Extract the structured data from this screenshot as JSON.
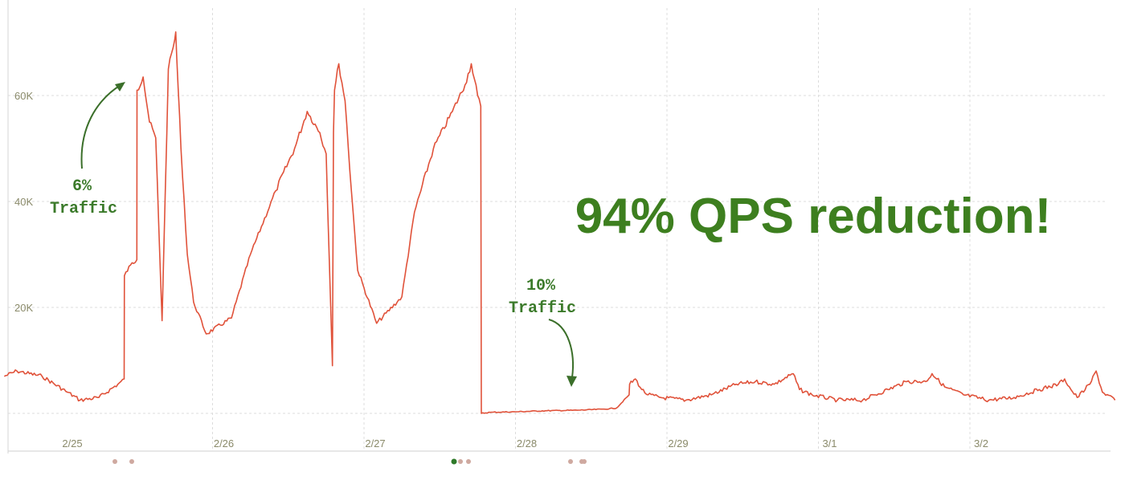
{
  "headline": "94% QPS reduction!",
  "annotations": [
    {
      "line1": "6%",
      "line2": "Traffic"
    },
    {
      "line1": "10%",
      "line2": "Traffic"
    }
  ],
  "chart_data": {
    "type": "line",
    "title": "",
    "xlabel": "",
    "ylabel": "",
    "x_ticks": [
      "2/25",
      "2/26",
      "2/27",
      "2/28",
      "2/29",
      "3/1",
      "3/2"
    ],
    "y_ticks": [
      20000,
      40000,
      60000
    ],
    "y_tick_labels": [
      "20K",
      "40K",
      "60K"
    ],
    "xlim": [
      "2/24 15:00",
      "3/2 23:00"
    ],
    "ylim": [
      0,
      73000
    ],
    "grid": true,
    "legend": "none",
    "series": [
      {
        "color": "#e0523a",
        "x": [
          "2/24 15:00",
          "2/24 17:00",
          "2/24 21:00",
          "2/25 01:00",
          "2/25 03:00",
          "2/25 06:00",
          "2/25 09:00",
          "2/25 10:00",
          "2/25 10:02",
          "2/25 11:00",
          "2/25 12:00",
          "2/25 12:02",
          "2/25 13:00",
          "2/25 14:00",
          "2/25 15:00",
          "2/25 16:00",
          "2/25 17:00",
          "2/25 18:00",
          "2/25 18:10",
          "2/25 18:20",
          "2/25 19:00",
          "2/25 20:00",
          "2/25 21:00",
          "2/25 23:00",
          "2/26 03:00",
          "2/26 06:00",
          "2/26 10:00",
          "2/26 13:00",
          "2/26 15:00",
          "2/26 17:00",
          "2/26 18:00",
          "2/26 19:00",
          "2/26 19:10",
          "2/26 19:20",
          "2/26 20:00",
          "2/26 21:00",
          "2/26 22:00",
          "2/26 23:00",
          "2/27 02:00",
          "2/27 06:00",
          "2/27 08:00",
          "2/27 11:00",
          "2/27 14:00",
          "2/27 16:00",
          "2/27 17:00",
          "2/27 18:00",
          "2/27 18:30",
          "2/27 18:35",
          "2/27 20:00",
          "2/28 00:00",
          "2/28 05:00",
          "2/28 10:00",
          "2/28 14:00",
          "2/28 16:00",
          "2/28 18:00",
          "2/28 18:05",
          "2/28 19:00",
          "2/28 20:00",
          "2/28 21:00",
          "2/28 23:00",
          "2/29 03:00",
          "2/29 07:00",
          "2/29 11:00",
          "2/29 14:00",
          "2/29 17:00",
          "2/29 20:00",
          "2/29 21:00",
          "2/29 23:00",
          "3/1 03:00",
          "3/1 07:00",
          "3/1 11:00",
          "3/1 14:00",
          "3/1 17:00",
          "3/1 18:00",
          "3/1 20:00",
          "3/1 23:00",
          "3/2 03:00",
          "3/2 07:00",
          "3/2 11:00",
          "3/2 14:00",
          "3/2 15:00",
          "3/2 16:00",
          "3/2 17:00",
          "3/2 19:00",
          "3/2 20:00",
          "3/2 21:00",
          "3/2 23:00"
        ],
        "y": [
          7000,
          8000,
          7000,
          4000,
          2500,
          3000,
          5500,
          6500,
          26000,
          28000,
          29000,
          61000,
          63500,
          55000,
          52000,
          17500,
          65000,
          70500,
          72000,
          67000,
          50000,
          30000,
          21000,
          15000,
          18000,
          30000,
          42000,
          50000,
          57000,
          53000,
          49000,
          9000,
          53000,
          61000,
          66000,
          59000,
          42000,
          27000,
          17000,
          22000,
          38000,
          50000,
          57000,
          62000,
          66000,
          60000,
          58000,
          0,
          200,
          300,
          500,
          600,
          800,
          1000,
          3500,
          5500,
          6500,
          4500,
          3500,
          3000,
          2500,
          3500,
          5500,
          6000,
          5500,
          7500,
          4500,
          3500,
          2500,
          2500,
          4500,
          6000,
          6000,
          7500,
          5000,
          3500,
          2500,
          3000,
          4500,
          5500,
          6500,
          4500,
          3000,
          5500,
          8000,
          4000,
          2500
        ]
      }
    ]
  }
}
